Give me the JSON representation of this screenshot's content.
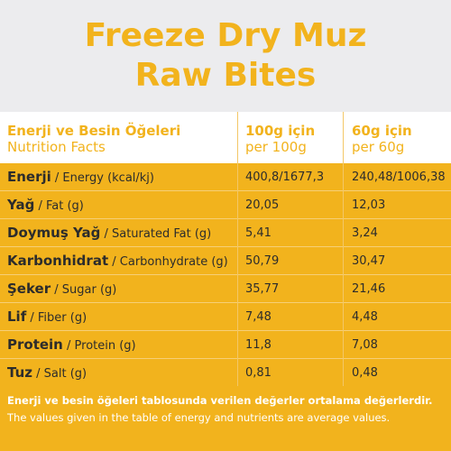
{
  "title": {
    "line1": "Freeze Dry Muz",
    "line2": "Raw Bites"
  },
  "columns": {
    "label_tr": "Enerji ve Besin Öğeleri",
    "label_en": "Nutrition Facts",
    "col1_tr": "100g için",
    "col1_en": "per 100g",
    "col2_tr": "60g için",
    "col2_en": "per 60g"
  },
  "rows": [
    {
      "tr": "Enerji",
      "en": " / Energy (kcal/kj)",
      "v100": "400,8/1677,3",
      "v60": "240,48/1006,38"
    },
    {
      "tr": "Yağ",
      "en": " / Fat (g)",
      "v100": "20,05",
      "v60": "12,03"
    },
    {
      "tr": "Doymuş Yağ",
      "en": " / Saturated Fat (g)",
      "v100": "5,41",
      "v60": "3,24"
    },
    {
      "tr": "Karbonhidrat",
      "en": " / Carbonhydrate (g)",
      "v100": "50,79",
      "v60": "30,47"
    },
    {
      "tr": "Şeker",
      "en": " / Sugar (g)",
      "v100": "35,77",
      "v60": "21,46"
    },
    {
      "tr": "Lif",
      "en": " / Fiber (g)",
      "v100": "7,48",
      "v60": "4,48"
    },
    {
      "tr": "Protein",
      "en": " / Protein (g)",
      "v100": "11,8",
      "v60": "7,08"
    },
    {
      "tr": "Tuz",
      "en": " / Salt (g)",
      "v100": "0,81",
      "v60": "0,48"
    }
  ],
  "footer": {
    "tr": "Enerji ve besin öğeleri tablosunda verilen değerler ortalama değerlerdir.",
    "en": "The values given in the table of energy and nutrients are average values."
  },
  "colors": {
    "brand_yellow": "#f2b31d",
    "header_bg": "#ececee",
    "text_dark": "#2c2c2c"
  }
}
